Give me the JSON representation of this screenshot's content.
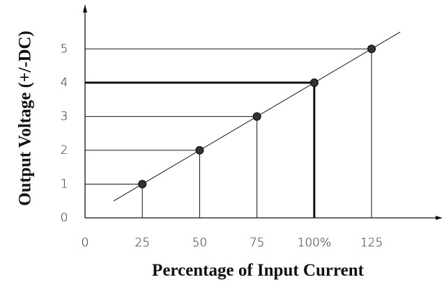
{
  "chart_data": {
    "type": "scatter",
    "x_label": "Percentage of Input Current",
    "y_label": "Output Voltage (+/-DC)",
    "x": [
      25,
      50,
      75,
      100,
      125
    ],
    "values": [
      1,
      2,
      3,
      4,
      5
    ],
    "color": "#333333",
    "highlight_index": 3,
    "xlim": [
      0,
      156
    ],
    "ylim": [
      0,
      6.2
    ],
    "xticks": [
      0,
      25,
      50,
      75,
      {
        "value": 100,
        "label": "100%"
      },
      125
    ],
    "yticks": [
      0,
      1,
      2,
      3,
      4,
      5
    ]
  }
}
